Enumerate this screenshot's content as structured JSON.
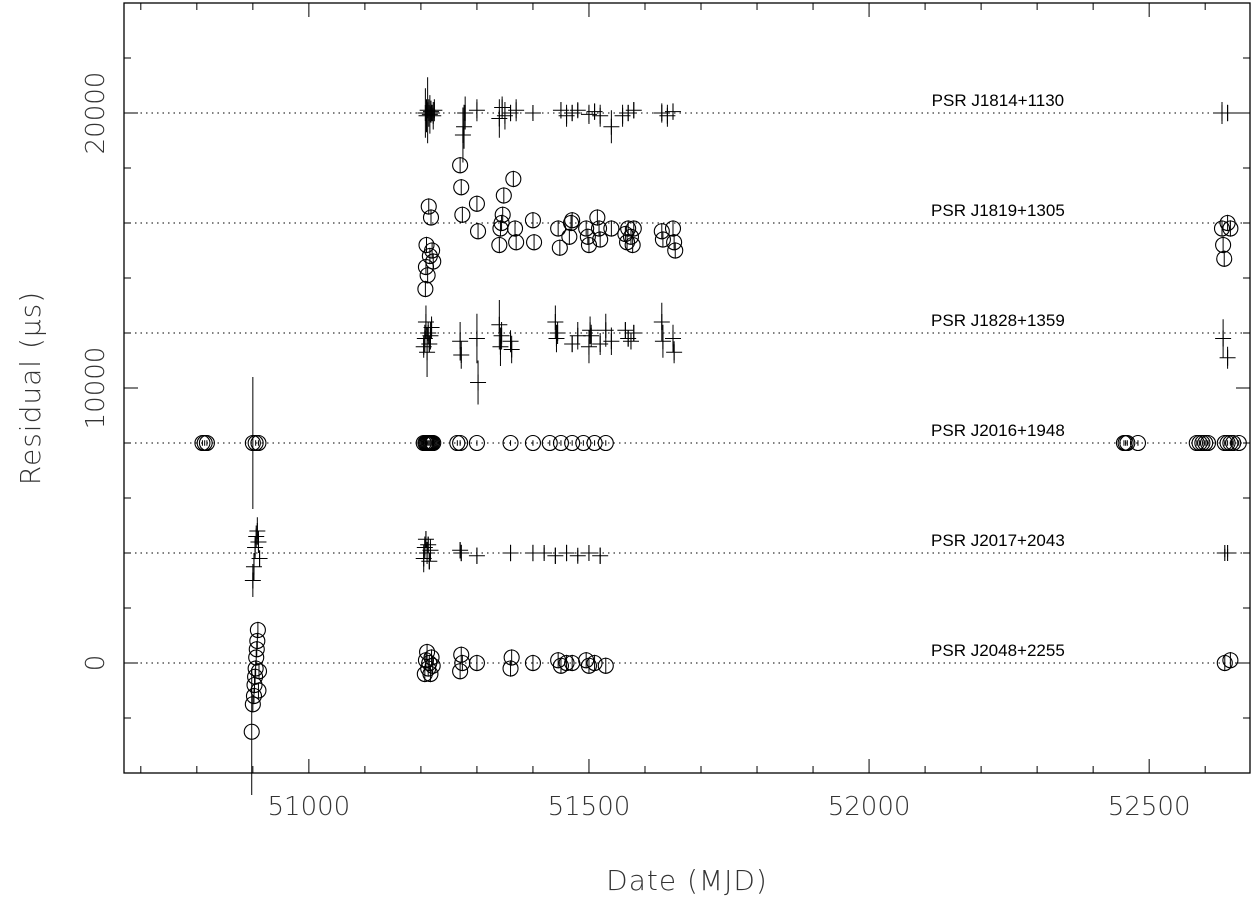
{
  "chart_data": {
    "type": "scatter",
    "xlabel": "Date (MJD)",
    "ylabel": "Residual (μs)",
    "xlim": [
      50670,
      52680
    ],
    "ylim": [
      -4000,
      24000
    ],
    "xticks": [
      51000,
      51500,
      52000,
      52500
    ],
    "yticks": [
      0,
      10000,
      20000
    ],
    "series": [
      {
        "name": "PSR J1814+1130",
        "offset": 20000,
        "marker": "plus",
        "points": [
          [
            51208,
            20000,
            900
          ],
          [
            51210,
            19900,
            600
          ],
          [
            51212,
            20100,
            1200
          ],
          [
            51214,
            20000,
            500
          ],
          [
            51216,
            19950,
            700
          ],
          [
            51218,
            20050,
            400
          ],
          [
            51220,
            20000,
            300
          ],
          [
            51222,
            19900,
            500
          ],
          [
            51224,
            20100,
            400
          ],
          [
            51275,
            19200,
            1000
          ],
          [
            51277,
            19500,
            800
          ],
          [
            51279,
            20000,
            600
          ],
          [
            51300,
            20100,
            400
          ],
          [
            51340,
            19800,
            700
          ],
          [
            51345,
            20200,
            400
          ],
          [
            51350,
            19900,
            500
          ],
          [
            51360,
            20000,
            300
          ],
          [
            51370,
            20100,
            400
          ],
          [
            51400,
            20000,
            200
          ],
          [
            51450,
            20100,
            300
          ],
          [
            51460,
            19900,
            400
          ],
          [
            51470,
            20000,
            300
          ],
          [
            51480,
            20100,
            250
          ],
          [
            51500,
            19950,
            350
          ],
          [
            51510,
            20050,
            300
          ],
          [
            51520,
            19900,
            400
          ],
          [
            51540,
            19500,
            600
          ],
          [
            51560,
            19900,
            400
          ],
          [
            51570,
            20000,
            300
          ],
          [
            51580,
            20100,
            300
          ],
          [
            51630,
            20000,
            350
          ],
          [
            51640,
            19900,
            400
          ],
          [
            51650,
            20050,
            300
          ],
          [
            52630,
            20000,
            400
          ],
          [
            52640,
            20000,
            300
          ]
        ]
      },
      {
        "name": "PSR J1819+1305",
        "offset": 16000,
        "marker": "circle",
        "points": [
          [
            51208,
            13600,
            300
          ],
          [
            51209,
            14400,
            300
          ],
          [
            51210,
            15200,
            300
          ],
          [
            51212,
            14100,
            300
          ],
          [
            51214,
            16600,
            300
          ],
          [
            51216,
            14800,
            300
          ],
          [
            51218,
            16200,
            300
          ],
          [
            51220,
            15000,
            300
          ],
          [
            51222,
            14600,
            300
          ],
          [
            51270,
            18100,
            300
          ],
          [
            51272,
            17300,
            300
          ],
          [
            51274,
            16300,
            300
          ],
          [
            51300,
            16700,
            300
          ],
          [
            51302,
            15700,
            300
          ],
          [
            51340,
            15200,
            300
          ],
          [
            51342,
            15800,
            300
          ],
          [
            51344,
            16000,
            300
          ],
          [
            51346,
            16300,
            300
          ],
          [
            51348,
            17000,
            300
          ],
          [
            51365,
            17600,
            300
          ],
          [
            51368,
            15800,
            300
          ],
          [
            51370,
            15300,
            300
          ],
          [
            51400,
            16100,
            300
          ],
          [
            51402,
            15300,
            300
          ],
          [
            51445,
            15800,
            300
          ],
          [
            51448,
            15100,
            300
          ],
          [
            51465,
            15500,
            300
          ],
          [
            51468,
            16000,
            300
          ],
          [
            51470,
            16100,
            300
          ],
          [
            51495,
            15800,
            300
          ],
          [
            51498,
            15500,
            300
          ],
          [
            51500,
            15200,
            300
          ],
          [
            51515,
            16200,
            300
          ],
          [
            51518,
            15800,
            300
          ],
          [
            51520,
            15400,
            300
          ],
          [
            51540,
            15800,
            300
          ],
          [
            51565,
            15600,
            300
          ],
          [
            51568,
            15300,
            300
          ],
          [
            51570,
            15800,
            300
          ],
          [
            51575,
            15500,
            300
          ],
          [
            51578,
            15200,
            300
          ],
          [
            51580,
            15800,
            300
          ],
          [
            51630,
            15700,
            300
          ],
          [
            51632,
            15400,
            300
          ],
          [
            51650,
            15800,
            300
          ],
          [
            51652,
            15300,
            300
          ],
          [
            51654,
            15000,
            300
          ],
          [
            52630,
            15800,
            300
          ],
          [
            52632,
            15200,
            300
          ],
          [
            52634,
            14700,
            300
          ],
          [
            52640,
            16000,
            300
          ],
          [
            52645,
            15800,
            300
          ]
        ]
      },
      {
        "name": "PSR J1828+1359",
        "offset": 12000,
        "marker": "plus",
        "points": [
          [
            51205,
            11500,
            400
          ],
          [
            51207,
            11800,
            500
          ],
          [
            51209,
            12400,
            600
          ],
          [
            51211,
            11300,
            900
          ],
          [
            51213,
            12000,
            400
          ],
          [
            51215,
            11600,
            300
          ],
          [
            51217,
            11900,
            500
          ],
          [
            51219,
            12200,
            400
          ],
          [
            51270,
            11700,
            700
          ],
          [
            51272,
            11200,
            500
          ],
          [
            51300,
            11800,
            900
          ],
          [
            51302,
            10200,
            800
          ],
          [
            51340,
            12300,
            900
          ],
          [
            51342,
            11500,
            700
          ],
          [
            51344,
            11900,
            500
          ],
          [
            51360,
            11700,
            400
          ],
          [
            51362,
            11400,
            500
          ],
          [
            51440,
            12400,
            600
          ],
          [
            51442,
            11800,
            500
          ],
          [
            51444,
            12000,
            400
          ],
          [
            51470,
            11600,
            300
          ],
          [
            51480,
            11900,
            500
          ],
          [
            51500,
            11500,
            600
          ],
          [
            51502,
            12100,
            500
          ],
          [
            51504,
            11900,
            400
          ],
          [
            51520,
            11600,
            400
          ],
          [
            51530,
            12100,
            600
          ],
          [
            51540,
            11700,
            500
          ],
          [
            51565,
            12100,
            300
          ],
          [
            51570,
            11800,
            300
          ],
          [
            51575,
            11700,
            300
          ],
          [
            51580,
            12000,
            300
          ],
          [
            51630,
            12400,
            700
          ],
          [
            51632,
            11700,
            600
          ],
          [
            51650,
            11800,
            500
          ],
          [
            51652,
            11300,
            400
          ],
          [
            52632,
            11800,
            700
          ],
          [
            52640,
            11100,
            400
          ]
        ]
      },
      {
        "name": "PSR J2016+1948",
        "offset": 8000,
        "marker": "circle",
        "points": [
          [
            50810,
            8000,
            100
          ],
          [
            50814,
            8000,
            100
          ],
          [
            50818,
            8000,
            100
          ],
          [
            50900,
            8000,
            2400
          ],
          [
            50905,
            8000,
            100
          ],
          [
            50910,
            8000,
            100
          ],
          [
            51205,
            8000,
            100
          ],
          [
            51208,
            8000,
            100
          ],
          [
            51210,
            8000,
            100
          ],
          [
            51212,
            8000,
            100
          ],
          [
            51214,
            8000,
            100
          ],
          [
            51216,
            8000,
            100
          ],
          [
            51218,
            8000,
            100
          ],
          [
            51220,
            8000,
            100
          ],
          [
            51222,
            8000,
            100
          ],
          [
            51265,
            8000,
            100
          ],
          [
            51270,
            8000,
            100
          ],
          [
            51300,
            8000,
            100
          ],
          [
            51360,
            8000,
            100
          ],
          [
            51400,
            8000,
            100
          ],
          [
            51430,
            8000,
            100
          ],
          [
            51450,
            8000,
            100
          ],
          [
            51470,
            8000,
            100
          ],
          [
            51490,
            8000,
            100
          ],
          [
            51510,
            8000,
            100
          ],
          [
            51530,
            8000,
            100
          ],
          [
            52455,
            8000,
            100
          ],
          [
            52458,
            8000,
            100
          ],
          [
            52461,
            8000,
            100
          ],
          [
            52480,
            8000,
            100
          ],
          [
            52585,
            8000,
            100
          ],
          [
            52590,
            8000,
            100
          ],
          [
            52595,
            8000,
            100
          ],
          [
            52600,
            8000,
            100
          ],
          [
            52605,
            8000,
            100
          ],
          [
            52635,
            8000,
            100
          ],
          [
            52640,
            8000,
            100
          ],
          [
            52645,
            8000,
            100
          ],
          [
            52650,
            8000,
            100
          ],
          [
            52660,
            8000,
            100
          ]
        ]
      },
      {
        "name": "PSR J2017+2043",
        "offset": 4000,
        "marker": "plus",
        "points": [
          [
            50900,
            3000,
            600
          ],
          [
            50902,
            3500,
            500
          ],
          [
            50904,
            4200,
            400
          ],
          [
            50906,
            4600,
            400
          ],
          [
            50908,
            4800,
            500
          ],
          [
            50910,
            4400,
            400
          ],
          [
            50912,
            3800,
            300
          ],
          [
            51205,
            3800,
            500
          ],
          [
            51207,
            4200,
            400
          ],
          [
            51209,
            4500,
            300
          ],
          [
            51211,
            4000,
            400
          ],
          [
            51213,
            4300,
            300
          ],
          [
            51215,
            3700,
            300
          ],
          [
            51217,
            4100,
            400
          ],
          [
            51270,
            4100,
            300
          ],
          [
            51272,
            4000,
            300
          ],
          [
            51300,
            3900,
            300
          ],
          [
            51360,
            4000,
            300
          ],
          [
            51400,
            4000,
            300
          ],
          [
            51420,
            4000,
            200
          ],
          [
            51440,
            3900,
            300
          ],
          [
            51460,
            4000,
            300
          ],
          [
            51480,
            3900,
            200
          ],
          [
            51500,
            4000,
            250
          ],
          [
            51520,
            3900,
            300
          ],
          [
            52635,
            4000,
            150
          ],
          [
            52640,
            4000,
            150
          ]
        ]
      },
      {
        "name": "PSR J2048+2255",
        "offset": 0,
        "marker": "circle",
        "points": [
          [
            50898,
            -2500,
            2300
          ],
          [
            50900,
            -1500,
            300
          ],
          [
            50902,
            -1200,
            300
          ],
          [
            50903,
            -800,
            300
          ],
          [
            50904,
            -500,
            300
          ],
          [
            50905,
            -200,
            300
          ],
          [
            50906,
            200,
            300
          ],
          [
            50907,
            500,
            300
          ],
          [
            50908,
            800,
            300
          ],
          [
            50909,
            1200,
            300
          ],
          [
            50910,
            -1000,
            300
          ],
          [
            50911,
            -300,
            300
          ],
          [
            51207,
            -400,
            300
          ],
          [
            51209,
            100,
            300
          ],
          [
            51211,
            400,
            300
          ],
          [
            51213,
            -200,
            300
          ],
          [
            51215,
            0,
            300
          ],
          [
            51217,
            -400,
            300
          ],
          [
            51219,
            200,
            300
          ],
          [
            51221,
            -100,
            300
          ],
          [
            51270,
            -300,
            300
          ],
          [
            51272,
            300,
            300
          ],
          [
            51274,
            0,
            300
          ],
          [
            51300,
            0,
            300
          ],
          [
            51360,
            -200,
            300
          ],
          [
            51362,
            200,
            300
          ],
          [
            51400,
            0,
            300
          ],
          [
            51445,
            100,
            300
          ],
          [
            51450,
            -100,
            300
          ],
          [
            51460,
            0,
            300
          ],
          [
            51470,
            0,
            300
          ],
          [
            51495,
            100,
            300
          ],
          [
            51500,
            -100,
            300
          ],
          [
            51510,
            0,
            300
          ],
          [
            51530,
            -100,
            300
          ],
          [
            52635,
            0,
            300
          ],
          [
            52645,
            100,
            300
          ]
        ]
      }
    ],
    "labels": [
      "PSR J1814+1130",
      "PSR J1819+1305",
      "PSR J1828+1359",
      "PSR J2016+1948",
      "PSR J2017+2043",
      "PSR J2048+2255"
    ],
    "grid": false,
    "reference_lines": "dotted horizontal line at each pulsar offset"
  }
}
